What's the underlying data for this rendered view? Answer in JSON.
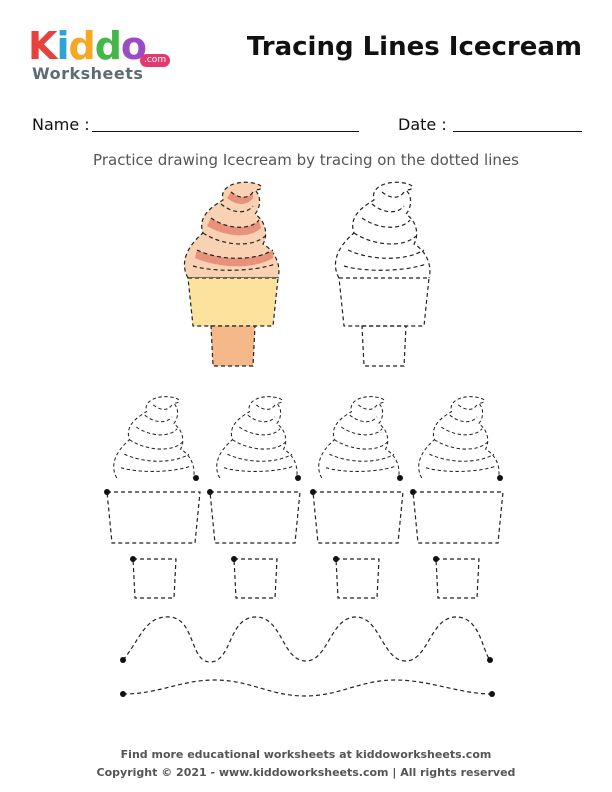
{
  "logo": {
    "letters": [
      "K",
      "i",
      "d",
      "d",
      "o"
    ],
    "letter_colors": [
      "#e8413c",
      "#2ea3d8",
      "#f7a823",
      "#45b649",
      "#9c4bc7"
    ],
    "sub": "Worksheets",
    "com": ".com"
  },
  "title": "Tracing Lines Icecream",
  "form": {
    "name_label": "Name :",
    "date_label": "Date :"
  },
  "instruction": "Practice drawing Icecream by tracing on the dotted lines",
  "colors": {
    "swirl_light": "#f9d1b3",
    "swirl_dark": "#e8927c",
    "cup": "#fde29e",
    "cone": "#f5b888",
    "guide": "#222222"
  },
  "footer": {
    "line1": "Find more educational worksheets at kiddoworksheets.com",
    "line2": "Copyright © 2021 - www.kiddoworksheets.com  |  All rights reserved"
  }
}
